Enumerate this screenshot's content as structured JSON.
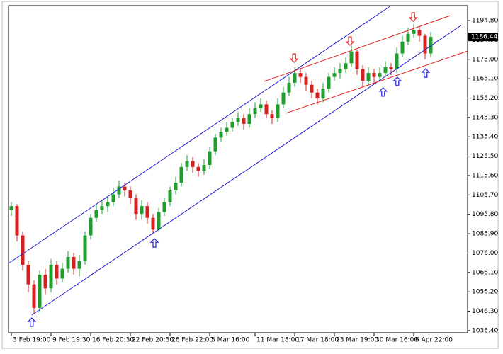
{
  "chart_data": {
    "type": "candlestick",
    "open": [
      1098,
      1100,
      1085,
      1070,
      1060,
      1048,
      1065,
      1058,
      1070,
      1063,
      1068,
      1074,
      1068,
      1072,
      1085,
      1094,
      1098,
      1100,
      1102,
      1106,
      1110,
      1108,
      1104,
      1096,
      1100,
      1094,
      1088,
      1097,
      1102,
      1108,
      1112,
      1120,
      1123,
      1120,
      1118,
      1121,
      1128,
      1135,
      1138,
      1140,
      1143,
      1145,
      1142,
      1147,
      1150,
      1152,
      1147,
      1145,
      1152,
      1158,
      1163,
      1168,
      1166,
      1162,
      1158,
      1155,
      1160,
      1166,
      1168,
      1170,
      1173,
      1179,
      1170,
      1164,
      1168,
      1166,
      1168,
      1171,
      1170,
      1178,
      1184,
      1188,
      1190,
      1187,
      1178
    ],
    "high": [
      1102,
      1101,
      1087,
      1072,
      1062,
      1067,
      1068,
      1073,
      1072,
      1071,
      1077,
      1076,
      1075,
      1087,
      1096,
      1101,
      1103,
      1105,
      1109,
      1113,
      1112,
      1110,
      1106,
      1103,
      1102,
      1096,
      1099,
      1104,
      1110,
      1115,
      1122,
      1126,
      1125,
      1122,
      1124,
      1130,
      1137,
      1140,
      1143,
      1145,
      1148,
      1147,
      1150,
      1153,
      1155,
      1154,
      1149,
      1155,
      1161,
      1166,
      1171,
      1170,
      1168,
      1164,
      1160,
      1163,
      1168,
      1171,
      1173,
      1176,
      1182,
      1180,
      1172,
      1171,
      1170,
      1171,
      1174,
      1173,
      1181,
      1187,
      1191,
      1193,
      1192,
      1188,
      1189
    ],
    "low": [
      1095,
      1082,
      1067,
      1056,
      1045,
      1046,
      1055,
      1056,
      1060,
      1061,
      1066,
      1065,
      1064,
      1070,
      1083,
      1092,
      1096,
      1097,
      1100,
      1104,
      1105,
      1101,
      1093,
      1093,
      1091,
      1086,
      1087,
      1095,
      1100,
      1106,
      1110,
      1118,
      1117,
      1115,
      1116,
      1119,
      1126,
      1133,
      1136,
      1138,
      1141,
      1139,
      1140,
      1145,
      1148,
      1145,
      1142,
      1143,
      1150,
      1156,
      1161,
      1163,
      1159,
      1155,
      1152,
      1153,
      1158,
      1164,
      1165,
      1168,
      1171,
      1167,
      1161,
      1162,
      1163,
      1164,
      1166,
      1167,
      1168,
      1176,
      1182,
      1186,
      1184,
      1175,
      1176
    ],
    "close": [
      1100,
      1085,
      1070,
      1060,
      1048,
      1065,
      1058,
      1070,
      1063,
      1068,
      1074,
      1068,
      1072,
      1085,
      1094,
      1098,
      1100,
      1102,
      1106,
      1110,
      1108,
      1104,
      1096,
      1100,
      1094,
      1088,
      1097,
      1102,
      1108,
      1112,
      1120,
      1123,
      1120,
      1118,
      1121,
      1128,
      1135,
      1138,
      1140,
      1143,
      1145,
      1142,
      1147,
      1150,
      1152,
      1147,
      1145,
      1152,
      1158,
      1163,
      1168,
      1166,
      1162,
      1158,
      1155,
      1160,
      1166,
      1168,
      1170,
      1173,
      1179,
      1170,
      1164,
      1168,
      1166,
      1168,
      1171,
      1170,
      1178,
      1184,
      1188,
      1190,
      1187,
      1178,
      1186.44
    ],
    "up_color": "#1f9e2f",
    "down_color": "#d42020",
    "current_price": 1186.44,
    "xlim": [
      -0.5,
      80.5
    ],
    "xticks": [
      {
        "value": 0,
        "label": "3 Feb 19:00"
      },
      {
        "value": 7,
        "label": "9 Feb 19:30"
      },
      {
        "value": 14,
        "label": "16 Feb 20:30"
      },
      {
        "value": 21,
        "label": "22 Feb 20:30"
      },
      {
        "value": 28,
        "label": "26 Feb 22:00"
      },
      {
        "value": 35,
        "label": "5 Mar 16:00"
      },
      {
        "value": 43,
        "label": "11 Mar 18:00"
      },
      {
        "value": 50,
        "label": "17 Mar 18:00"
      },
      {
        "value": 57,
        "label": "23 Mar 19:00"
      },
      {
        "value": 64,
        "label": "30 Mar 16:00"
      },
      {
        "value": 71,
        "label": "6 Apr 22:00"
      }
    ],
    "ylim": [
      1035.3,
      1202.4
    ],
    "yticks": [
      {
        "value": 1194.8,
        "label": "1194.80"
      },
      {
        "value": 1184.9,
        "label": "1184.90"
      },
      {
        "value": 1175,
        "label": "1175.00"
      },
      {
        "value": 1165.1,
        "label": "1165.10"
      },
      {
        "value": 1155.2,
        "label": "1155.20"
      },
      {
        "value": 1145.3,
        "label": "1145.30"
      },
      {
        "value": 1135.4,
        "label": "1135.40"
      },
      {
        "value": 1125.5,
        "label": "1125.50"
      },
      {
        "value": 1115.6,
        "label": "1115.60"
      },
      {
        "value": 1105.7,
        "label": "1105.70"
      },
      {
        "value": 1095.8,
        "label": "1095.80"
      },
      {
        "value": 1085.9,
        "label": "1085.90"
      },
      {
        "value": 1076,
        "label": "1076.00"
      },
      {
        "value": 1066.1,
        "label": "1066.10"
      },
      {
        "value": 1056.2,
        "label": "1056.20"
      },
      {
        "value": 1046.3,
        "label": "1046.30"
      },
      {
        "value": 1036.4,
        "label": "1036.40"
      }
    ],
    "trendlines": [
      {
        "color": "#2020d0",
        "x": [
          -0.5,
          67
        ],
        "y": [
          1070.75,
          1202.4
        ]
      },
      {
        "color": "#2020d0",
        "x": [
          3.6,
          79.5
        ],
        "y": [
          1044.35,
          1192.6
        ]
      },
      {
        "color": "#e02020",
        "x": [
          44.6,
          77.4
        ],
        "y": [
          1163.7,
          1197.3
        ]
      },
      {
        "color": "#e02020",
        "x": [
          48.4,
          80.5
        ],
        "y": [
          1147.4,
          1179.2
        ]
      }
    ],
    "arrows": [
      {
        "direction": "down",
        "color": "#e02020",
        "x": 49.9,
        "y": 1175.6
      },
      {
        "direction": "down",
        "color": "#e02020",
        "x": 59.75,
        "y": 1184.3
      },
      {
        "direction": "down",
        "color": "#e02020",
        "x": 70.9,
        "y": 1196.6
      },
      {
        "direction": "up",
        "color": "#2020d0",
        "x": 3.6,
        "y": 1040.7
      },
      {
        "direction": "up",
        "color": "#2020d0",
        "x": 25.25,
        "y": 1081.2
      },
      {
        "direction": "up",
        "color": "#2020d0",
        "x": 65.6,
        "y": 1158.3
      },
      {
        "direction": "up",
        "color": "#2020d0",
        "x": 68.1,
        "y": 1163.7
      },
      {
        "direction": "up",
        "color": "#2020d0",
        "x": 73.1,
        "y": 1168.0
      }
    ]
  }
}
